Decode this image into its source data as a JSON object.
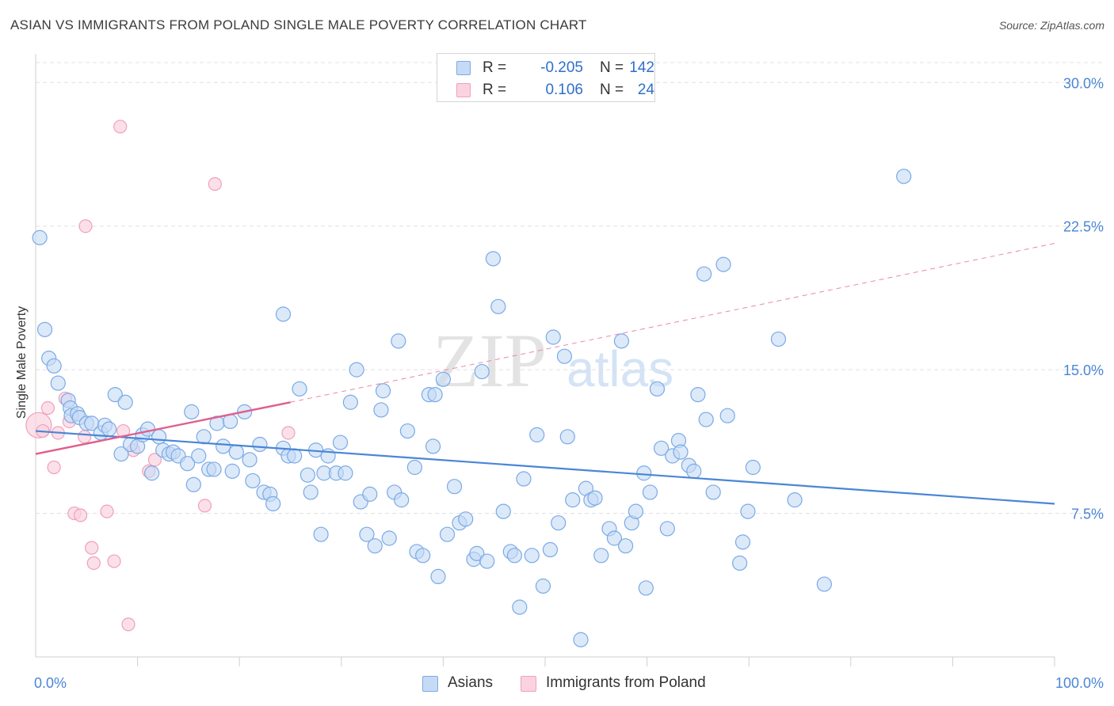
{
  "header": {
    "title": "ASIAN VS IMMIGRANTS FROM POLAND SINGLE MALE POVERTY CORRELATION CHART",
    "source": "Source: ZipAtlas.com"
  },
  "watermark": {
    "zip": "ZIP",
    "atlas": "atlas"
  },
  "legend": {
    "r_label": "R =",
    "n_label": "N =",
    "rows": [
      {
        "name": "Asians",
        "r": "-0.205",
        "n": "142",
        "color": "#7aaae6",
        "fill": "#c5dbf5"
      },
      {
        "name": "Immigrants from Poland",
        "r": "0.106",
        "n": "24",
        "color": "#f0a0ba",
        "fill": "#fbd3e0"
      }
    ]
  },
  "chart_data": {
    "type": "scatter",
    "title": "ASIAN VS IMMIGRANTS FROM POLAND SINGLE MALE POVERTY CORRELATION CHART",
    "xlabel": "",
    "ylabel": "Single Male Poverty",
    "xlim": [
      0,
      100
    ],
    "ylim": [
      0,
      31.5
    ],
    "x_tick_labels": [
      "0.0%",
      "100.0%"
    ],
    "y_ticks": [
      7.5,
      15.0,
      22.5,
      30.0
    ],
    "y_tick_labels": [
      "7.5%",
      "15.0%",
      "22.5%",
      "30.0%"
    ],
    "grid": "horizontal dashed",
    "legend_position": "top-center",
    "series": [
      {
        "name": "Asians",
        "color": "#4a86d6",
        "fill": "#c5dbf5",
        "trend": {
          "x": [
            0,
            100
          ],
          "y": [
            11.8,
            8.0
          ],
          "style": "solid"
        },
        "points": [
          [
            0.4,
            21.9
          ],
          [
            0.9,
            17.1
          ],
          [
            1.3,
            15.6
          ],
          [
            1.8,
            15.2
          ],
          [
            2.2,
            14.3
          ],
          [
            3.2,
            13.4
          ],
          [
            3.4,
            13.0
          ],
          [
            3.5,
            12.6
          ],
          [
            4.1,
            12.7
          ],
          [
            4.3,
            12.5
          ],
          [
            5.0,
            12.2
          ],
          [
            5.5,
            12.2
          ],
          [
            6.4,
            11.7
          ],
          [
            6.8,
            12.1
          ],
          [
            7.2,
            11.9
          ],
          [
            7.8,
            13.7
          ],
          [
            8.4,
            10.6
          ],
          [
            8.8,
            13.3
          ],
          [
            9.3,
            11.1
          ],
          [
            10.0,
            11.0
          ],
          [
            10.5,
            11.6
          ],
          [
            11.0,
            11.9
          ],
          [
            11.4,
            9.6
          ],
          [
            12.1,
            11.5
          ],
          [
            12.5,
            10.8
          ],
          [
            13.1,
            10.6
          ],
          [
            13.5,
            10.7
          ],
          [
            14.0,
            10.5
          ],
          [
            14.9,
            10.1
          ],
          [
            15.3,
            12.8
          ],
          [
            15.5,
            9.0
          ],
          [
            16.0,
            10.5
          ],
          [
            16.5,
            11.5
          ],
          [
            17.0,
            9.8
          ],
          [
            17.5,
            9.8
          ],
          [
            17.8,
            12.2
          ],
          [
            18.4,
            11.0
          ],
          [
            19.1,
            12.3
          ],
          [
            19.3,
            9.7
          ],
          [
            19.7,
            10.7
          ],
          [
            20.5,
            12.8
          ],
          [
            21.0,
            10.3
          ],
          [
            21.3,
            9.2
          ],
          [
            22.0,
            11.1
          ],
          [
            22.4,
            8.6
          ],
          [
            23.0,
            8.5
          ],
          [
            23.3,
            8.0
          ],
          [
            24.3,
            10.9
          ],
          [
            24.3,
            17.9
          ],
          [
            24.8,
            10.5
          ],
          [
            25.4,
            10.5
          ],
          [
            25.9,
            14.0
          ],
          [
            26.7,
            9.5
          ],
          [
            27.0,
            8.6
          ],
          [
            27.5,
            10.8
          ],
          [
            28.0,
            6.4
          ],
          [
            28.3,
            9.6
          ],
          [
            28.7,
            10.5
          ],
          [
            29.5,
            9.6
          ],
          [
            29.9,
            11.2
          ],
          [
            30.4,
            9.6
          ],
          [
            30.9,
            13.3
          ],
          [
            31.5,
            15.0
          ],
          [
            31.9,
            8.1
          ],
          [
            32.5,
            6.4
          ],
          [
            32.8,
            8.5
          ],
          [
            33.3,
            5.8
          ],
          [
            33.9,
            12.9
          ],
          [
            34.1,
            13.9
          ],
          [
            34.7,
            6.2
          ],
          [
            35.2,
            8.6
          ],
          [
            35.6,
            16.5
          ],
          [
            35.9,
            8.2
          ],
          [
            36.5,
            11.8
          ],
          [
            37.2,
            9.9
          ],
          [
            37.4,
            5.5
          ],
          [
            38.0,
            5.3
          ],
          [
            38.6,
            13.7
          ],
          [
            39.0,
            11.0
          ],
          [
            39.2,
            13.7
          ],
          [
            39.5,
            4.2
          ],
          [
            40.0,
            14.5
          ],
          [
            40.4,
            6.4
          ],
          [
            41.1,
            8.9
          ],
          [
            41.6,
            7.0
          ],
          [
            42.2,
            7.2
          ],
          [
            43.0,
            5.1
          ],
          [
            43.3,
            5.4
          ],
          [
            43.8,
            14.9
          ],
          [
            44.3,
            5.0
          ],
          [
            44.9,
            20.8
          ],
          [
            45.4,
            18.3
          ],
          [
            45.9,
            7.6
          ],
          [
            46.6,
            5.5
          ],
          [
            47.0,
            5.3
          ],
          [
            47.5,
            2.6
          ],
          [
            47.9,
            9.3
          ],
          [
            48.7,
            5.3
          ],
          [
            49.2,
            11.6
          ],
          [
            49.8,
            3.7
          ],
          [
            50.5,
            5.6
          ],
          [
            50.8,
            16.7
          ],
          [
            51.3,
            7.0
          ],
          [
            51.9,
            15.7
          ],
          [
            52.2,
            11.5
          ],
          [
            52.7,
            8.2
          ],
          [
            53.5,
            0.9
          ],
          [
            54.0,
            8.8
          ],
          [
            54.5,
            8.2
          ],
          [
            54.9,
            8.3
          ],
          [
            55.5,
            5.3
          ],
          [
            56.3,
            6.7
          ],
          [
            56.8,
            6.2
          ],
          [
            57.5,
            16.5
          ],
          [
            57.9,
            5.8
          ],
          [
            58.5,
            7.0
          ],
          [
            58.9,
            7.6
          ],
          [
            59.7,
            9.6
          ],
          [
            59.9,
            3.6
          ],
          [
            60.3,
            8.6
          ],
          [
            61.0,
            14.0
          ],
          [
            61.4,
            10.9
          ],
          [
            62.0,
            6.7
          ],
          [
            62.5,
            10.5
          ],
          [
            63.1,
            11.3
          ],
          [
            63.3,
            10.7
          ],
          [
            64.1,
            10.0
          ],
          [
            64.6,
            9.7
          ],
          [
            65.0,
            13.7
          ],
          [
            65.6,
            20.0
          ],
          [
            65.8,
            12.4
          ],
          [
            66.5,
            8.6
          ],
          [
            67.5,
            20.5
          ],
          [
            67.9,
            12.6
          ],
          [
            69.1,
            4.9
          ],
          [
            69.4,
            6.0
          ],
          [
            69.9,
            7.6
          ],
          [
            70.4,
            9.9
          ],
          [
            72.9,
            16.6
          ],
          [
            74.5,
            8.2
          ],
          [
            77.4,
            3.8
          ],
          [
            85.2,
            25.1
          ]
        ]
      },
      {
        "name": "Immigrants from Poland",
        "color": "#e05f8c",
        "fill": "#fbd3e0",
        "trend": {
          "x": [
            0,
            25
          ],
          "y": [
            10.6,
            13.3
          ],
          "style": "solid",
          "extension": {
            "x": [
              25,
              100
            ],
            "y": [
              13.3,
              21.6
            ],
            "style": "dashed"
          }
        },
        "points": [
          [
            0.3,
            12.1
          ],
          [
            0.7,
            11.8
          ],
          [
            1.2,
            13.0
          ],
          [
            1.8,
            9.9
          ],
          [
            2.2,
            11.7
          ],
          [
            2.9,
            13.5
          ],
          [
            3.3,
            12.3
          ],
          [
            3.8,
            7.5
          ],
          [
            4.4,
            7.4
          ],
          [
            4.8,
            11.5
          ],
          [
            4.9,
            22.5
          ],
          [
            5.5,
            5.7
          ],
          [
            5.7,
            4.9
          ],
          [
            7.0,
            7.6
          ],
          [
            7.7,
            5.0
          ],
          [
            8.3,
            27.7
          ],
          [
            8.6,
            11.8
          ],
          [
            9.1,
            1.7
          ],
          [
            9.6,
            10.8
          ],
          [
            11.1,
            9.7
          ],
          [
            11.7,
            10.3
          ],
          [
            16.6,
            7.9
          ],
          [
            17.6,
            24.7
          ],
          [
            24.8,
            11.7
          ]
        ]
      }
    ]
  }
}
